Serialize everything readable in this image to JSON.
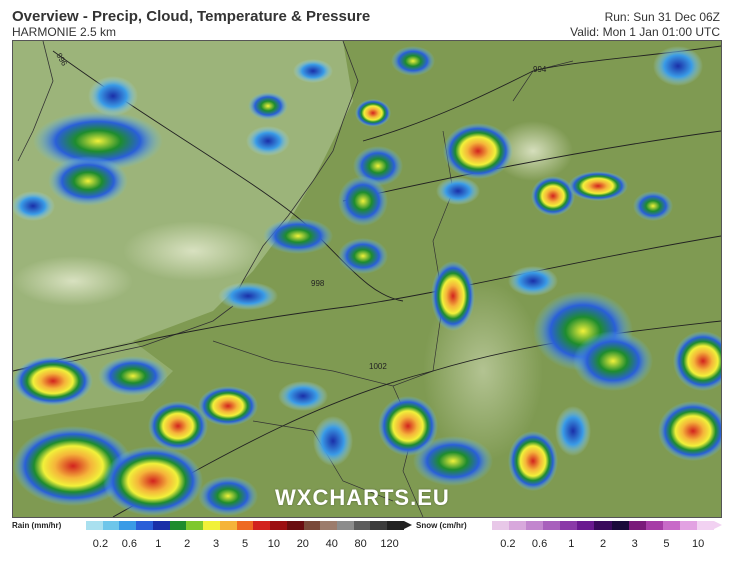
{
  "header": {
    "title": "Overview - Precip, Cloud, Temperature & Pressure",
    "model": "HARMONIE 2.5 km",
    "run": "Run: Sun 31 Dec 06Z",
    "valid": "Valid: Mon 1 Jan 01:00 UTC"
  },
  "map": {
    "watermark": "WXCHARTS.EU",
    "isobar_labels": [
      "996",
      "998",
      "1002",
      "994"
    ]
  },
  "rain_legend": {
    "title": "Rain (mm/hr)",
    "ticks": [
      "0.2",
      "0.6",
      "1",
      "2",
      "3",
      "5",
      "10",
      "20",
      "40",
      "80",
      "120"
    ],
    "colors": [
      "#a9e0ef",
      "#6ec6ea",
      "#3a9be6",
      "#2a5fd8",
      "#1a2fa8",
      "#1e8c2e",
      "#7ec82e",
      "#f1f13a",
      "#f5b43a",
      "#ee6a22",
      "#d2221e",
      "#9c0f12",
      "#6a0d10",
      "#7a4a3a",
      "#9c7c6c",
      "#8c8c8c",
      "#5c5c5c",
      "#3c3c3c",
      "#222222"
    ]
  },
  "snow_legend": {
    "title": "Snow (cm/hr)",
    "ticks": [
      "0.2",
      "0.6",
      "1",
      "2",
      "3",
      "5",
      "10"
    ],
    "colors": [
      "#e8c8e8",
      "#d8a8dc",
      "#c286ce",
      "#a860bc",
      "#8a3aa8",
      "#6a1a90",
      "#3a0a5c",
      "#1a0a3a",
      "#7a1a7a",
      "#a63ca6",
      "#c86ac8",
      "#e2a2e2",
      "#f2d2f2"
    ]
  }
}
